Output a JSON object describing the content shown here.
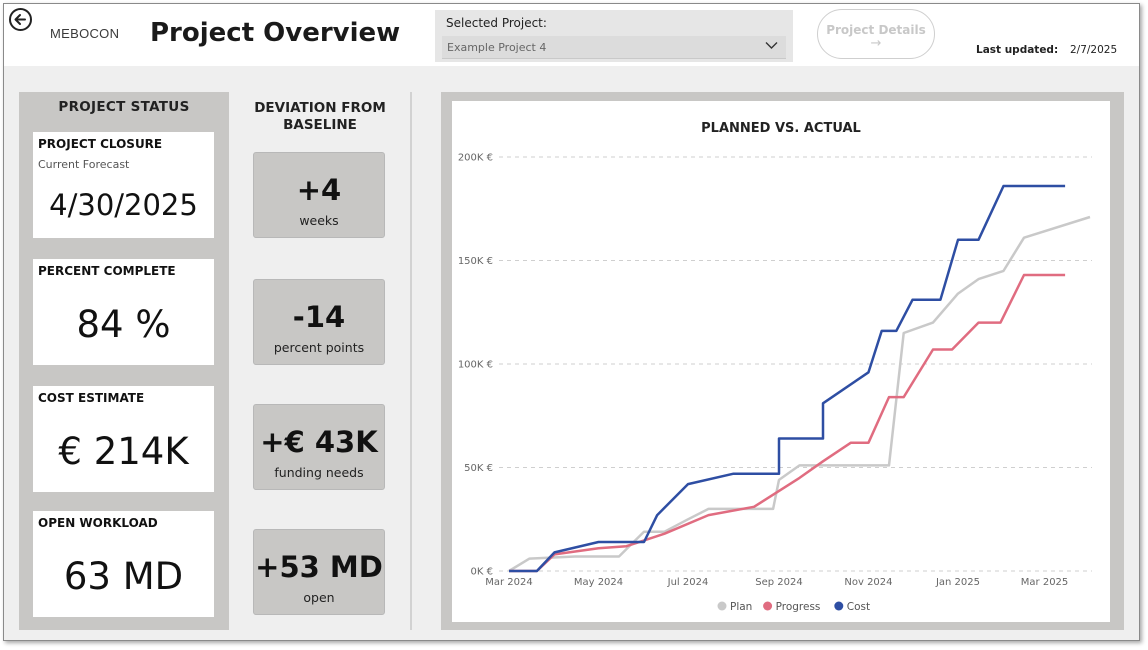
{
  "header": {
    "logo": "MEBOCON",
    "title": "Project Overview",
    "selected_project_label": "Selected Project:",
    "selected_project_value": "Example Project 4",
    "details_button": "Project Details",
    "details_arrow": "→",
    "last_updated_label": "Last updated:",
    "last_updated_value": "2/7/2025"
  },
  "status": {
    "heading": "PROJECT STATUS",
    "cards": [
      {
        "title": "PROJECT CLOSURE",
        "subtitle": "Current Forecast",
        "value": "4/30/2025"
      },
      {
        "title": "PERCENT COMPLETE",
        "subtitle": "",
        "value": "84 %"
      },
      {
        "title": "COST ESTIMATE",
        "subtitle": "",
        "value": "€ 214K"
      },
      {
        "title": "OPEN WORKLOAD",
        "subtitle": "",
        "value": "63 MD"
      }
    ]
  },
  "deviation": {
    "heading_line1": "DEVIATION FROM",
    "heading_line2": "BASELINE",
    "cards": [
      {
        "value": "+4",
        "unit": "weeks"
      },
      {
        "value": "-14",
        "unit": "percent points"
      },
      {
        "value": "+€ 43K",
        "unit": "funding needs"
      },
      {
        "value": "+53 MD",
        "unit": "open"
      }
    ]
  },
  "chart_data": {
    "type": "line",
    "title": "PLANNED VS. ACTUAL",
    "xlabel": "",
    "ylabel": "",
    "y_ticks": [
      "0K €",
      "50K €",
      "100K €",
      "150K €",
      "200K €"
    ],
    "ylim": [
      0,
      200000
    ],
    "x_tick_labels": [
      "Mar 2024",
      "May 2024",
      "Jul 2024",
      "Sep 2024",
      "Nov 2024",
      "Jan 2025",
      "Mar 2025"
    ],
    "x_start": "2024-03-01",
    "grid": true,
    "legend_position": "bottom",
    "series": [
      {
        "name": "Plan",
        "color": "#c9c9c9",
        "points": [
          [
            "2024-03-01",
            0
          ],
          [
            "2024-03-15",
            6000
          ],
          [
            "2024-04-15",
            7000
          ],
          [
            "2024-05-01",
            7000
          ],
          [
            "2024-05-15",
            7000
          ],
          [
            "2024-06-01",
            19000
          ],
          [
            "2024-06-15",
            19000
          ],
          [
            "2024-07-01",
            25000
          ],
          [
            "2024-07-15",
            30000
          ],
          [
            "2024-08-15",
            30000
          ],
          [
            "2024-08-28",
            30000
          ],
          [
            "2024-09-01",
            44000
          ],
          [
            "2024-09-15",
            51000
          ],
          [
            "2024-10-15",
            51000
          ],
          [
            "2024-11-15",
            51000
          ],
          [
            "2024-11-25",
            115000
          ],
          [
            "2024-12-15",
            120000
          ],
          [
            "2025-01-01",
            134000
          ],
          [
            "2025-01-15",
            141000
          ],
          [
            "2025-02-01",
            145000
          ],
          [
            "2025-02-15",
            161000
          ],
          [
            "2025-04-01",
            171000
          ]
        ]
      },
      {
        "name": "Progress",
        "color": "#e06c80",
        "points": [
          [
            "2024-03-01",
            0
          ],
          [
            "2024-03-20",
            0
          ],
          [
            "2024-04-01",
            8000
          ],
          [
            "2024-05-01",
            11000
          ],
          [
            "2024-05-20",
            12000
          ],
          [
            "2024-06-15",
            18000
          ],
          [
            "2024-07-15",
            27000
          ],
          [
            "2024-08-15",
            31000
          ],
          [
            "2024-09-15",
            45000
          ],
          [
            "2024-10-01",
            53000
          ],
          [
            "2024-10-20",
            62000
          ],
          [
            "2024-11-01",
            62000
          ],
          [
            "2024-11-15",
            84000
          ],
          [
            "2024-11-25",
            84000
          ],
          [
            "2024-12-15",
            107000
          ],
          [
            "2024-12-28",
            107000
          ],
          [
            "2025-01-15",
            120000
          ],
          [
            "2025-01-30",
            120000
          ],
          [
            "2025-02-15",
            143000
          ],
          [
            "2025-03-15",
            143000
          ]
        ]
      },
      {
        "name": "Cost",
        "color": "#2e4ea3",
        "points": [
          [
            "2024-03-01",
            0
          ],
          [
            "2024-03-20",
            0
          ],
          [
            "2024-04-01",
            9000
          ],
          [
            "2024-05-01",
            14000
          ],
          [
            "2024-06-01",
            14000
          ],
          [
            "2024-06-10",
            27000
          ],
          [
            "2024-07-01",
            42000
          ],
          [
            "2024-08-01",
            47000
          ],
          [
            "2024-09-01",
            47000
          ],
          [
            "2024-09-01",
            64000
          ],
          [
            "2024-10-01",
            64000
          ],
          [
            "2024-10-01",
            81000
          ],
          [
            "2024-11-01",
            96000
          ],
          [
            "2024-11-10",
            116000
          ],
          [
            "2024-11-20",
            116000
          ],
          [
            "2024-12-01",
            131000
          ],
          [
            "2024-12-20",
            131000
          ],
          [
            "2025-01-01",
            160000
          ],
          [
            "2025-01-15",
            160000
          ],
          [
            "2025-02-01",
            186000
          ],
          [
            "2025-03-15",
            186000
          ]
        ]
      }
    ]
  }
}
